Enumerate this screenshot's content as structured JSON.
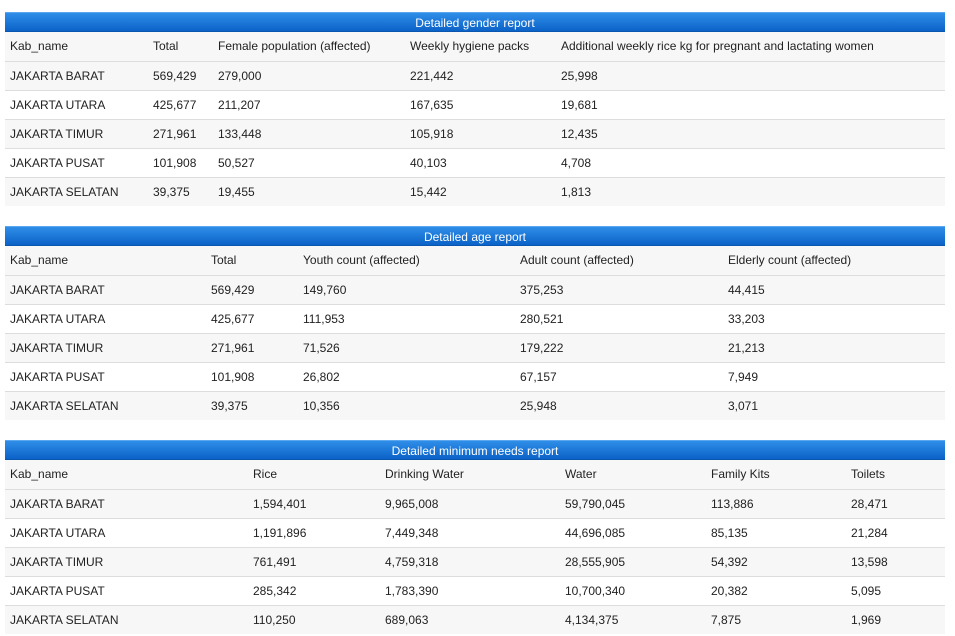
{
  "gender": {
    "title": "Detailed gender report",
    "headers": [
      "Kab_name",
      "Total",
      "Female population (affected)",
      "Weekly hygiene packs",
      "Additional weekly rice kg for pregnant and lactating women"
    ],
    "rows": [
      [
        "JAKARTA BARAT",
        "569,429",
        "279,000",
        "221,442",
        "25,998"
      ],
      [
        "JAKARTA UTARA",
        "425,677",
        "211,207",
        "167,635",
        "19,681"
      ],
      [
        "JAKARTA TIMUR",
        "271,961",
        "133,448",
        "105,918",
        "12,435"
      ],
      [
        "JAKARTA PUSAT",
        "101,908",
        "50,527",
        "40,103",
        "4,708"
      ],
      [
        "JAKARTA SELATAN",
        "39,375",
        "19,455",
        "15,442",
        "1,813"
      ]
    ]
  },
  "age": {
    "title": "Detailed age report",
    "headers": [
      "Kab_name",
      "Total",
      "Youth count (affected)",
      "Adult count (affected)",
      "Elderly count (affected)"
    ],
    "rows": [
      [
        "JAKARTA BARAT",
        "569,429",
        "149,760",
        "375,253",
        "44,415"
      ],
      [
        "JAKARTA UTARA",
        "425,677",
        "111,953",
        "280,521",
        "33,203"
      ],
      [
        "JAKARTA TIMUR",
        "271,961",
        "71,526",
        "179,222",
        "21,213"
      ],
      [
        "JAKARTA PUSAT",
        "101,908",
        "26,802",
        "67,157",
        "7,949"
      ],
      [
        "JAKARTA SELATAN",
        "39,375",
        "10,356",
        "25,948",
        "3,071"
      ]
    ]
  },
  "needs": {
    "title": "Detailed minimum needs report",
    "headers": [
      "Kab_name",
      "Rice",
      "Drinking Water",
      "Water",
      "Family Kits",
      "Toilets"
    ],
    "rows": [
      [
        "JAKARTA BARAT",
        "1,594,401",
        "9,965,008",
        "59,790,045",
        "113,886",
        "28,471"
      ],
      [
        "JAKARTA UTARA",
        "1,191,896",
        "7,449,348",
        "44,696,085",
        "85,135",
        "21,284"
      ],
      [
        "JAKARTA TIMUR",
        "761,491",
        "4,759,318",
        "28,555,905",
        "54,392",
        "13,598"
      ],
      [
        "JAKARTA PUSAT",
        "285,342",
        "1,783,390",
        "10,700,340",
        "20,382",
        "5,095"
      ],
      [
        "JAKARTA SELATAN",
        "110,250",
        "689,063",
        "4,134,375",
        "7,875",
        "1,969"
      ]
    ]
  }
}
